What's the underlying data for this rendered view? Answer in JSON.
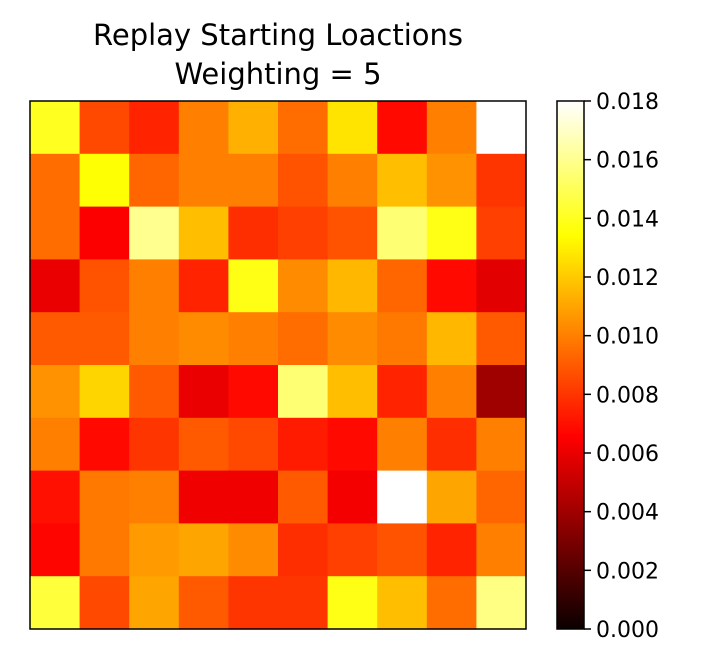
{
  "chart_data": {
    "type": "heatmap",
    "title": "Replay Starting Loactions",
    "subtitle": "Weighting = 5",
    "xlabel": "",
    "ylabel": "",
    "colormap": "hot",
    "grid": false,
    "x_ticks_shown": false,
    "y_ticks_shown": false,
    "vmin": 0.0,
    "vmax": 0.018,
    "colorbar": {
      "placement": "right",
      "ticks": [
        0.0,
        0.002,
        0.004,
        0.006,
        0.008,
        0.01,
        0.012,
        0.014,
        0.016,
        0.018
      ],
      "tick_labels": [
        "0.000",
        "0.002",
        "0.004",
        "0.006",
        "0.008",
        "0.010",
        "0.012",
        "0.014",
        "0.016",
        "0.018"
      ]
    },
    "rows": 10,
    "cols": 10,
    "values": [
      [
        0.014,
        0.0085,
        0.0075,
        0.01,
        0.0113,
        0.0095,
        0.0127,
        0.0068,
        0.01,
        0.018
      ],
      [
        0.0095,
        0.0135,
        0.0093,
        0.01,
        0.01,
        0.0088,
        0.01,
        0.0117,
        0.0105,
        0.008
      ],
      [
        0.0095,
        0.0065,
        0.016,
        0.0117,
        0.0078,
        0.0083,
        0.0088,
        0.0155,
        0.0138,
        0.0083
      ],
      [
        0.006,
        0.0088,
        0.01,
        0.0075,
        0.0138,
        0.0103,
        0.0115,
        0.0093,
        0.0068,
        0.0058
      ],
      [
        0.009,
        0.009,
        0.01,
        0.0103,
        0.01,
        0.0095,
        0.0103,
        0.0098,
        0.0115,
        0.009
      ],
      [
        0.0105,
        0.0123,
        0.009,
        0.006,
        0.0068,
        0.0155,
        0.0117,
        0.0075,
        0.01,
        0.004
      ],
      [
        0.01,
        0.0068,
        0.008,
        0.009,
        0.0085,
        0.0073,
        0.0068,
        0.01,
        0.0078,
        0.01
      ],
      [
        0.007,
        0.0098,
        0.01,
        0.0062,
        0.0062,
        0.009,
        0.0063,
        0.018,
        0.011,
        0.0093
      ],
      [
        0.0067,
        0.0098,
        0.0107,
        0.011,
        0.0103,
        0.0078,
        0.0083,
        0.0088,
        0.0075,
        0.01
      ],
      [
        0.0145,
        0.0085,
        0.011,
        0.009,
        0.008,
        0.008,
        0.0138,
        0.0117,
        0.0095,
        0.0158
      ]
    ]
  }
}
